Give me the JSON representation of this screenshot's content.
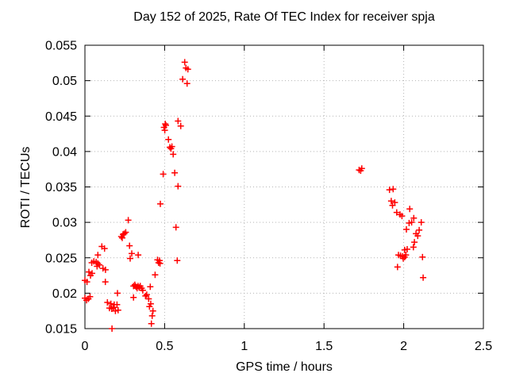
{
  "chart_data": {
    "type": "scatter",
    "title": "Day 152 of 2025, Rate Of TEC Index for receiver spja",
    "xlabel": "GPS time / hours",
    "ylabel": "ROTI / TECUs",
    "xlim": [
      0,
      2.5
    ],
    "ylim": [
      0.015,
      0.055
    ],
    "xticks": [
      0,
      0.5,
      1,
      1.5,
      2,
      2.5
    ],
    "xtick_labels": [
      "0",
      "0.5",
      "1",
      "1.5",
      "2",
      "2.5"
    ],
    "yticks": [
      0.015,
      0.02,
      0.025,
      0.03,
      0.035,
      0.04,
      0.045,
      0.05,
      0.055
    ],
    "ytick_labels": [
      "0.015",
      "0.02",
      "0.025",
      "0.03",
      "0.035",
      "0.04",
      "0.045",
      "0.05",
      "0.055"
    ],
    "grid": true,
    "legend": "none",
    "marker": "plus",
    "colors": {
      "marker": "#ff0000",
      "grid": "#b4b4b4",
      "frame": "#000000",
      "background": "#ffffff"
    },
    "series": [
      {
        "name": "ROTI",
        "points": [
          [
            0.0,
            0.0193
          ],
          [
            0.01,
            0.019
          ],
          [
            0.022,
            0.0192
          ],
          [
            0.032,
            0.0195
          ],
          [
            0.0,
            0.0218
          ],
          [
            0.013,
            0.0216
          ],
          [
            0.025,
            0.023
          ],
          [
            0.045,
            0.0228
          ],
          [
            0.035,
            0.0225
          ],
          [
            0.043,
            0.0243
          ],
          [
            0.056,
            0.0245
          ],
          [
            0.07,
            0.0244
          ],
          [
            0.081,
            0.0242
          ],
          [
            0.09,
            0.024
          ],
          [
            0.076,
            0.0238
          ],
          [
            0.081,
            0.0254
          ],
          [
            0.106,
            0.0266
          ],
          [
            0.123,
            0.0263
          ],
          [
            0.113,
            0.0235
          ],
          [
            0.129,
            0.0233
          ],
          [
            0.128,
            0.0216
          ],
          [
            0.228,
            0.028
          ],
          [
            0.234,
            0.0278
          ],
          [
            0.239,
            0.0283
          ],
          [
            0.247,
            0.0284
          ],
          [
            0.256,
            0.0286
          ],
          [
            0.272,
            0.0303
          ],
          [
            0.28,
            0.0267
          ],
          [
            0.294,
            0.0256
          ],
          [
            0.334,
            0.0254
          ],
          [
            0.284,
            0.0249
          ],
          [
            0.141,
            0.0187
          ],
          [
            0.163,
            0.0185
          ],
          [
            0.184,
            0.0184
          ],
          [
            0.201,
            0.0184
          ],
          [
            0.154,
            0.0179
          ],
          [
            0.168,
            0.0178
          ],
          [
            0.179,
            0.018
          ],
          [
            0.191,
            0.0175
          ],
          [
            0.208,
            0.0176
          ],
          [
            0.204,
            0.02
          ],
          [
            0.305,
            0.021
          ],
          [
            0.313,
            0.0212
          ],
          [
            0.32,
            0.0209
          ],
          [
            0.327,
            0.0207
          ],
          [
            0.333,
            0.021
          ],
          [
            0.34,
            0.0208
          ],
          [
            0.347,
            0.021
          ],
          [
            0.356,
            0.0207
          ],
          [
            0.363,
            0.0204
          ],
          [
            0.305,
            0.0194
          ],
          [
            0.38,
            0.0196
          ],
          [
            0.388,
            0.0198
          ],
          [
            0.4,
            0.0192
          ],
          [
            0.41,
            0.0209
          ],
          [
            0.413,
            0.0185
          ],
          [
            0.405,
            0.0181
          ],
          [
            0.427,
            0.0175
          ],
          [
            0.422,
            0.0168
          ],
          [
            0.417,
            0.0157
          ],
          [
            0.17,
            0.015
          ],
          [
            0.44,
            0.0226
          ],
          [
            0.455,
            0.0247
          ],
          [
            0.462,
            0.0243
          ],
          [
            0.468,
            0.0246
          ],
          [
            0.471,
            0.0242
          ],
          [
            0.579,
            0.0246
          ],
          [
            0.473,
            0.0326
          ],
          [
            0.571,
            0.0293
          ],
          [
            0.491,
            0.0368
          ],
          [
            0.563,
            0.037
          ],
          [
            0.584,
            0.0351
          ],
          [
            0.524,
            0.0417
          ],
          [
            0.533,
            0.0406
          ],
          [
            0.54,
            0.0404
          ],
          [
            0.546,
            0.0407
          ],
          [
            0.554,
            0.0396
          ],
          [
            0.496,
            0.0434
          ],
          [
            0.501,
            0.043
          ],
          [
            0.504,
            0.0439
          ],
          [
            0.508,
            0.0437
          ],
          [
            0.584,
            0.0443
          ],
          [
            0.601,
            0.0436
          ],
          [
            0.613,
            0.0502
          ],
          [
            0.626,
            0.0526
          ],
          [
            0.634,
            0.0518
          ],
          [
            0.646,
            0.0516
          ],
          [
            0.641,
            0.0496
          ],
          [
            1.72,
            0.0374
          ],
          [
            1.73,
            0.0373
          ],
          [
            1.737,
            0.0376
          ],
          [
            1.911,
            0.0346
          ],
          [
            1.934,
            0.0347
          ],
          [
            1.922,
            0.033
          ],
          [
            1.944,
            0.0328
          ],
          [
            1.93,
            0.0324
          ],
          [
            1.956,
            0.0314
          ],
          [
            1.977,
            0.0311
          ],
          [
            1.989,
            0.0309
          ],
          [
            2.038,
            0.0319
          ],
          [
            2.063,
            0.0306
          ],
          [
            2.05,
            0.03
          ],
          [
            2.034,
            0.0299
          ],
          [
            2.11,
            0.03
          ],
          [
            2.097,
            0.0289
          ],
          [
            2.017,
            0.029
          ],
          [
            2.077,
            0.0284
          ],
          [
            2.088,
            0.0281
          ],
          [
            2.067,
            0.0272
          ],
          [
            2.061,
            0.0265
          ],
          [
            2.006,
            0.0261
          ],
          [
            2.022,
            0.0262
          ],
          [
            1.967,
            0.0254
          ],
          [
            1.98,
            0.0253
          ],
          [
            1.993,
            0.0252
          ],
          [
            2.006,
            0.0251
          ],
          [
            1.997,
            0.0249
          ],
          [
            2.014,
            0.0254
          ],
          [
            2.118,
            0.0251
          ],
          [
            1.961,
            0.0237
          ],
          [
            2.122,
            0.0222
          ]
        ]
      }
    ]
  }
}
